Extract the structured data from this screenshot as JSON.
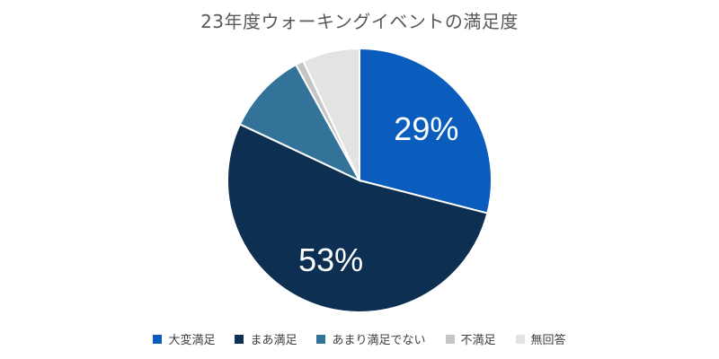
{
  "chart_data": {
    "type": "pie",
    "title": "23年度ウォーキングイベントの満足度",
    "categories": [
      "大変満足",
      "まあ満足",
      "あまり満足でない",
      "不満足",
      "無回答"
    ],
    "values": [
      29,
      53,
      10,
      1,
      7
    ],
    "data_labels": [
      "29%",
      "53%",
      "",
      "",
      ""
    ],
    "colors": [
      "#0a5cbd",
      "#0d2f52",
      "#33739a",
      "#c5c5c5",
      "#e3e3e3"
    ],
    "legend_position": "bottom",
    "start_angle": "top",
    "direction": "clockwise"
  }
}
